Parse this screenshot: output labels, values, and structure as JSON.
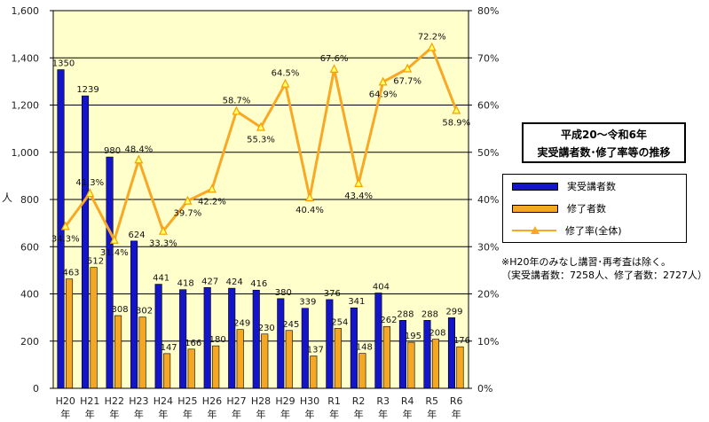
{
  "chart_data": {
    "type": "bar",
    "categories": [
      [
        "H20",
        "年"
      ],
      [
        "H21",
        "年"
      ],
      [
        "H22",
        "年"
      ],
      [
        "H23",
        "年"
      ],
      [
        "H24",
        "年"
      ],
      [
        "H25",
        "年"
      ],
      [
        "H26",
        "年"
      ],
      [
        "H27",
        "年"
      ],
      [
        "H28",
        "年"
      ],
      [
        "H29",
        "年"
      ],
      [
        "H30",
        "年"
      ],
      [
        "R1",
        "年"
      ],
      [
        "R2",
        "年"
      ],
      [
        "R3",
        "年"
      ],
      [
        "R4",
        "年"
      ],
      [
        "R5",
        "年"
      ],
      [
        "R6",
        "年"
      ]
    ],
    "series": [
      {
        "name": "実受講者数",
        "type": "bar",
        "axis": "left",
        "color": "#1414c8",
        "values": [
          1350,
          1239,
          980,
          624,
          441,
          418,
          427,
          424,
          416,
          380,
          339,
          376,
          341,
          404,
          288,
          288,
          299
        ]
      },
      {
        "name": "修了者数",
        "type": "bar",
        "axis": "left",
        "color": "#f5a623",
        "values": [
          463,
          512,
          308,
          302,
          147,
          166,
          180,
          249,
          230,
          245,
          137,
          254,
          148,
          262,
          195,
          208,
          176
        ]
      },
      {
        "name": "修了率(全体)",
        "type": "line",
        "axis": "right",
        "color": "#f9a825",
        "values": [
          34.3,
          41.3,
          31.4,
          48.4,
          33.3,
          39.7,
          42.2,
          58.7,
          55.3,
          64.5,
          40.4,
          67.6,
          43.4,
          64.9,
          67.7,
          72.2,
          58.9
        ],
        "labels": [
          "34.3%",
          "41.3%",
          "31.4%",
          "48.4%",
          "33.3%",
          "39.7%",
          "42.2%",
          "58.7%",
          "55.3%",
          "64.5%",
          "40.4%",
          "67.6%",
          "43.4%",
          "64.9%",
          "67.7%",
          "72.2%",
          "58.9%"
        ]
      }
    ],
    "ylabel": "人",
    "ylim": [
      0,
      1600
    ],
    "yticks": [
      "0",
      "200",
      "400",
      "600",
      "800",
      "1,000",
      "1,200",
      "1,400",
      "1,600"
    ],
    "y2lim": [
      0,
      80
    ],
    "y2ticks": [
      "0%",
      "10%",
      "20%",
      "30%",
      "40%",
      "50%",
      "60%",
      "70%",
      "80%"
    ],
    "grid": true,
    "plot_bg": "#ffffcc",
    "title_lines": [
      "平成20～令和6年",
      "実受講者数･修了率等の推移"
    ],
    "legend_position": "right"
  },
  "legend": {
    "items": [
      "実受講者数",
      "修了者数",
      "修了率(全体)"
    ]
  },
  "note": {
    "line1": "※H20年のみなし講習･再考査は除く。",
    "line2": "（実受講者数：7258人、修了者数：2727人）"
  }
}
